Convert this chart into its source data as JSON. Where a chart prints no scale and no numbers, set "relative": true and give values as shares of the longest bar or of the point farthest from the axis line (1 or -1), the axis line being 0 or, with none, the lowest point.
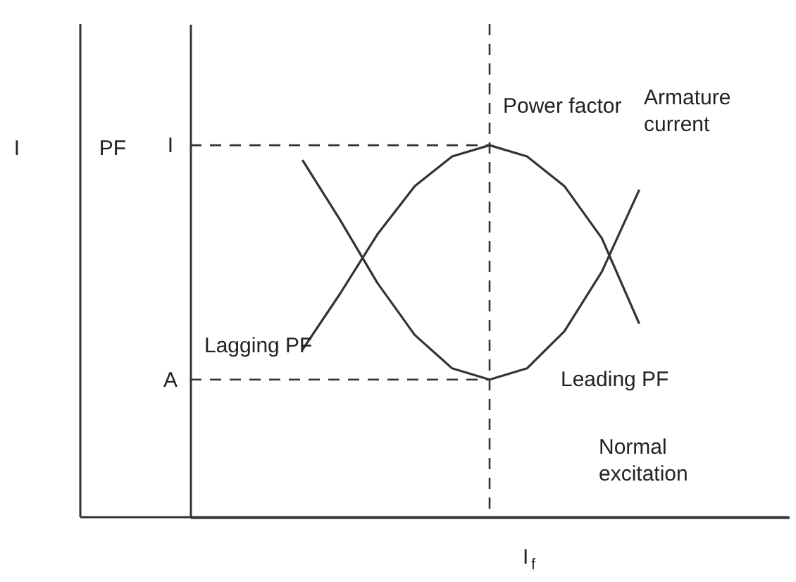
{
  "chart_data": {
    "type": "line",
    "relative": true,
    "categories": [
      null,
      null,
      null,
      null,
      null,
      null,
      null,
      null,
      null,
      null,
      null,
      null,
      null,
      null,
      null,
      null,
      null
    ],
    "series": [
      {
        "name": "Power factor",
        "color": "#333333",
        "values": [
          null,
          null,
          null,
          0.45,
          0.6,
          0.76,
          0.89,
          0.97,
          1.0,
          0.97,
          0.89,
          0.75,
          0.52,
          null,
          null,
          null,
          null
        ]
      },
      {
        "name": "Armature current",
        "color": "#333333",
        "values": [
          null,
          null,
          null,
          0.96,
          0.8,
          0.63,
          0.49,
          0.4,
          0.37,
          0.4,
          0.5,
          0.66,
          0.88,
          null,
          null,
          null,
          null
        ]
      }
    ],
    "ylabel": "PF",
    "xlabel": "I$_{f}$",
    "ref_lines": [
      {
        "axis": "y",
        "value": 1.0,
        "label": "I",
        "line_style": "dashed"
      },
      {
        "axis": "y",
        "value": 0.37,
        "label": "A",
        "line_style": "dashed"
      }
    ],
    "annotations": [
      "Lagging PF",
      "Leading PF",
      "Normal excitation",
      "I"
    ],
    "grid": false,
    "marker": "none",
    "line_style": "solid"
  }
}
